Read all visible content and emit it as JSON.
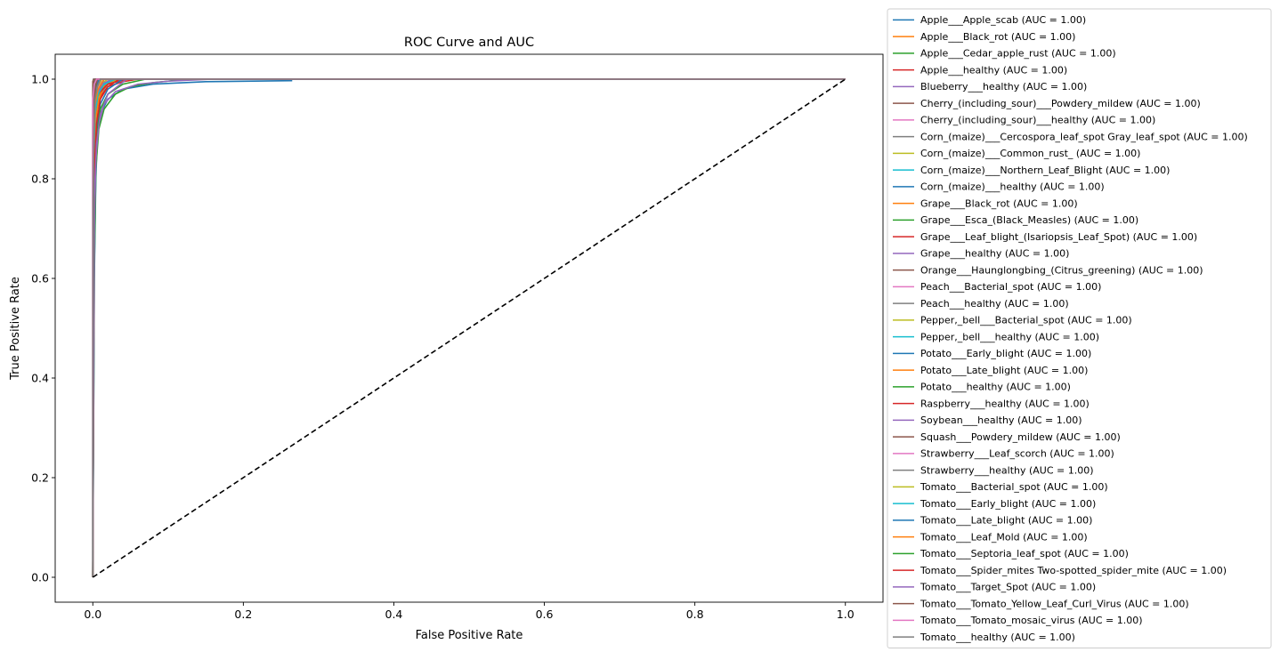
{
  "chart_data": {
    "type": "line",
    "title": "ROC Curve and AUC",
    "xlabel": "False Positive Rate",
    "ylabel": "True Positive Rate",
    "xlim": [
      -0.05,
      1.05
    ],
    "ylim": [
      -0.05,
      1.05
    ],
    "xticks": [
      "0.0",
      "0.2",
      "0.4",
      "0.6",
      "0.8",
      "1.0"
    ],
    "yticks": [
      "0.0",
      "0.2",
      "0.4",
      "0.6",
      "0.8",
      "1.0"
    ],
    "grid": false,
    "legend_placement": "right, outside plot",
    "diagonal": {
      "x": [
        0,
        1
      ],
      "y": [
        0,
        1
      ],
      "style": "dashed",
      "color": "#000000"
    },
    "series": [
      {
        "name": "Apple___Apple_scab (AUC = 1.00)",
        "color": "#1f77b4",
        "x": [
          0,
          0.002,
          0.004,
          0.006,
          0.01,
          0.02,
          0.04,
          0.08,
          0.15,
          0.264,
          0.264,
          1
        ],
        "y": [
          0,
          0.6,
          0.8,
          0.88,
          0.93,
          0.96,
          0.98,
          0.99,
          0.995,
          0.997,
          1,
          1
        ]
      },
      {
        "name": "Apple___Black_rot (AUC = 1.00)",
        "color": "#ff7f0e",
        "x": [
          0,
          0.001,
          0.002,
          0.005,
          0.01,
          0.02,
          0.03,
          1
        ],
        "y": [
          0,
          0.8,
          0.93,
          0.97,
          0.985,
          0.995,
          1,
          1
        ]
      },
      {
        "name": "Apple___Cedar_apple_rust (AUC = 1.00)",
        "color": "#2ca02c",
        "x": [
          0,
          0.002,
          0.004,
          0.008,
          0.015,
          0.03,
          0.05,
          0.08,
          0.1,
          0.12,
          1
        ],
        "y": [
          0,
          0.62,
          0.82,
          0.9,
          0.94,
          0.97,
          0.985,
          0.993,
          0.996,
          1,
          1
        ]
      },
      {
        "name": "Apple___healthy (AUC = 1.00)",
        "color": "#d62728",
        "x": [
          0,
          0.001,
          0.003,
          0.006,
          0.01,
          0.02,
          0.04,
          0.06,
          1
        ],
        "y": [
          0,
          0.75,
          0.88,
          0.94,
          0.965,
          0.985,
          0.995,
          1,
          1
        ]
      },
      {
        "name": "Blueberry___healthy (AUC = 1.00)",
        "color": "#9467bd",
        "x": [
          0,
          0.002,
          0.004,
          0.008,
          0.015,
          0.03,
          0.06,
          0.1,
          0.16,
          1
        ],
        "y": [
          0,
          0.7,
          0.84,
          0.91,
          0.95,
          0.975,
          0.99,
          0.996,
          1,
          1
        ]
      },
      {
        "name": "Cherry_(including_sour)___Powdery_mildew (AUC = 1.00)",
        "color": "#8c564b",
        "x": [
          0,
          0,
          0.002,
          0.005,
          1
        ],
        "y": [
          0,
          0.98,
          0.995,
          1,
          1
        ]
      },
      {
        "name": "Cherry_(including_sour)___healthy (AUC = 1.00)",
        "color": "#e377c2",
        "x": [
          0,
          0,
          0.003,
          0.01,
          1
        ],
        "y": [
          0,
          0.95,
          0.99,
          1,
          1
        ]
      },
      {
        "name": "Corn_(maize)___Cercospora_leaf_spot Gray_leaf_spot (AUC = 1.00)",
        "color": "#7f7f7f",
        "x": [
          0,
          0.002,
          0.005,
          0.01,
          0.02,
          0.04,
          1
        ],
        "y": [
          0,
          0.85,
          0.94,
          0.97,
          0.99,
          1,
          1
        ]
      },
      {
        "name": "Corn_(maize)___Common_rust_ (AUC = 1.00)",
        "color": "#bcbd22",
        "x": [
          0,
          0.001,
          0.004,
          0.01,
          0.02,
          1
        ],
        "y": [
          0,
          0.9,
          0.96,
          0.99,
          1,
          1
        ]
      },
      {
        "name": "Corn_(maize)___Northern_Leaf_Blight (AUC = 1.00)",
        "color": "#17becf",
        "x": [
          0,
          0.002,
          0.005,
          0.01,
          0.02,
          0.03,
          1
        ],
        "y": [
          0,
          0.88,
          0.95,
          0.98,
          0.995,
          1,
          1
        ]
      },
      {
        "name": "Corn_(maize)___healthy (AUC = 1.00)",
        "color": "#1f77b4",
        "x": [
          0,
          0,
          0.001,
          1
        ],
        "y": [
          0,
          0.99,
          1,
          1
        ]
      },
      {
        "name": "Grape___Black_rot (AUC = 1.00)",
        "color": "#ff7f0e",
        "x": [
          0,
          0.001,
          0.003,
          0.008,
          0.015,
          0.025,
          1
        ],
        "y": [
          0,
          0.86,
          0.94,
          0.975,
          0.99,
          1,
          1
        ]
      },
      {
        "name": "Grape___Esca_(Black_Measles) (AUC = 1.00)",
        "color": "#2ca02c",
        "x": [
          0,
          0.001,
          0.003,
          0.006,
          0.012,
          1
        ],
        "y": [
          0,
          0.9,
          0.97,
          0.99,
          1,
          1
        ]
      },
      {
        "name": "Grape___Leaf_blight_(Isariopsis_Leaf_Spot) (AUC = 1.00)",
        "color": "#d62728",
        "x": [
          0,
          0.001,
          0.003,
          0.007,
          0.015,
          0.03,
          1
        ],
        "y": [
          0,
          0.82,
          0.92,
          0.965,
          0.985,
          1,
          1
        ]
      },
      {
        "name": "Grape___healthy (AUC = 1.00)",
        "color": "#9467bd",
        "x": [
          0,
          0,
          0.002,
          0.005,
          1
        ],
        "y": [
          0,
          0.96,
          0.99,
          1,
          1
        ]
      },
      {
        "name": "Orange___Haunglongbing_(Citrus_greening) (AUC = 1.00)",
        "color": "#8c564b",
        "x": [
          0,
          0,
          0.001,
          1
        ],
        "y": [
          0,
          0.995,
          1,
          1
        ]
      },
      {
        "name": "Peach___Bacterial_spot (AUC = 1.00)",
        "color": "#e377c2",
        "x": [
          0,
          0.001,
          0.003,
          0.007,
          0.015,
          1
        ],
        "y": [
          0,
          0.88,
          0.95,
          0.98,
          1,
          1
        ]
      },
      {
        "name": "Peach___healthy (AUC = 1.00)",
        "color": "#7f7f7f",
        "x": [
          0,
          0,
          0.002,
          0.006,
          1
        ],
        "y": [
          0,
          0.94,
          0.985,
          1,
          1
        ]
      },
      {
        "name": "Pepper,_bell___Bacterial_spot (AUC = 1.00)",
        "color": "#bcbd22",
        "x": [
          0,
          0.001,
          0.004,
          0.008,
          0.02,
          0.035,
          1
        ],
        "y": [
          0,
          0.85,
          0.93,
          0.97,
          0.99,
          1,
          1
        ]
      },
      {
        "name": "Pepper,_bell___healthy (AUC = 1.00)",
        "color": "#17becf",
        "x": [
          0,
          0.001,
          0.003,
          0.008,
          0.015,
          1
        ],
        "y": [
          0,
          0.84,
          0.94,
          0.98,
          1,
          1
        ]
      },
      {
        "name": "Potato___Early_blight (AUC = 1.00)",
        "color": "#1f77b4",
        "x": [
          0,
          0.001,
          0.003,
          0.008,
          1
        ],
        "y": [
          0,
          0.92,
          0.97,
          1,
          1
        ]
      },
      {
        "name": "Potato___Late_blight (AUC = 1.00)",
        "color": "#ff7f0e",
        "x": [
          0,
          0.002,
          0.004,
          0.008,
          0.015,
          0.03,
          1
        ],
        "y": [
          0,
          0.83,
          0.92,
          0.96,
          0.985,
          1,
          1
        ]
      },
      {
        "name": "Potato___healthy (AUC = 1.00)",
        "color": "#2ca02c",
        "x": [
          0,
          0,
          0.002,
          0.006,
          1
        ],
        "y": [
          0,
          0.93,
          0.98,
          1,
          1
        ]
      },
      {
        "name": "Raspberry___healthy (AUC = 1.00)",
        "color": "#d62728",
        "x": [
          0,
          0.001,
          0.003,
          0.007,
          0.02,
          0.045,
          1
        ],
        "y": [
          0,
          0.86,
          0.93,
          0.97,
          0.99,
          1,
          1
        ]
      },
      {
        "name": "Soybean___healthy (AUC = 1.00)",
        "color": "#9467bd",
        "x": [
          0,
          0.001,
          0.003,
          0.006,
          0.012,
          0.025,
          1
        ],
        "y": [
          0,
          0.87,
          0.94,
          0.97,
          0.99,
          1,
          1
        ]
      },
      {
        "name": "Squash___Powdery_mildew (AUC = 1.00)",
        "color": "#8c564b",
        "x": [
          0,
          0,
          0.002,
          0.004,
          1
        ],
        "y": [
          0,
          0.97,
          0.995,
          1,
          1
        ]
      },
      {
        "name": "Strawberry___Leaf_scorch (AUC = 1.00)",
        "color": "#e377c2",
        "x": [
          0,
          0.001,
          0.003,
          0.007,
          0.015,
          1
        ],
        "y": [
          0,
          0.9,
          0.96,
          0.985,
          1,
          1
        ]
      },
      {
        "name": "Strawberry___healthy (AUC = 1.00)",
        "color": "#7f7f7f",
        "x": [
          0,
          0,
          0.002,
          0.005,
          1
        ],
        "y": [
          0,
          0.95,
          0.99,
          1,
          1
        ]
      },
      {
        "name": "Tomato___Bacterial_spot (AUC = 1.00)",
        "color": "#bcbd22",
        "x": [
          0,
          0.001,
          0.003,
          0.006,
          0.012,
          1
        ],
        "y": [
          0,
          0.91,
          0.96,
          0.985,
          1,
          1
        ]
      },
      {
        "name": "Tomato___Early_blight (AUC = 1.00)",
        "color": "#17becf",
        "x": [
          0,
          0.001,
          0.003,
          0.007,
          0.015,
          0.03,
          1
        ],
        "y": [
          0,
          0.84,
          0.93,
          0.97,
          0.99,
          1,
          1
        ]
      },
      {
        "name": "Tomato___Late_blight (AUC = 1.00)",
        "color": "#1f77b4",
        "x": [
          0,
          0.002,
          0.005,
          0.01,
          0.02,
          0.04,
          1
        ],
        "y": [
          0,
          0.8,
          0.9,
          0.95,
          0.98,
          1,
          1
        ]
      },
      {
        "name": "Tomato___Leaf_Mold (AUC = 1.00)",
        "color": "#ff7f0e",
        "x": [
          0,
          0.001,
          0.003,
          0.007,
          0.015,
          1
        ],
        "y": [
          0,
          0.87,
          0.95,
          0.98,
          1,
          1
        ]
      },
      {
        "name": "Tomato___Septoria_leaf_spot (AUC = 1.00)",
        "color": "#2ca02c",
        "x": [
          0,
          0.002,
          0.005,
          0.01,
          0.02,
          0.04,
          0.07,
          1
        ],
        "y": [
          0,
          0.78,
          0.88,
          0.94,
          0.97,
          0.99,
          1,
          1
        ]
      },
      {
        "name": "Tomato___Spider_mites Two-spotted_spider_mite (AUC = 1.00)",
        "color": "#d62728",
        "x": [
          0,
          0.002,
          0.005,
          0.01,
          0.02,
          0.035,
          1
        ],
        "y": [
          0,
          0.82,
          0.91,
          0.96,
          0.985,
          1,
          1
        ]
      },
      {
        "name": "Tomato___Target_Spot (AUC = 1.00)",
        "color": "#9467bd",
        "x": [
          0,
          0.002,
          0.005,
          0.01,
          0.02,
          0.045,
          1
        ],
        "y": [
          0,
          0.76,
          0.87,
          0.93,
          0.97,
          1,
          1
        ]
      },
      {
        "name": "Tomato___Tomato_Yellow_Leaf_Curl_Virus (AUC = 1.00)",
        "color": "#8c564b",
        "x": [
          0,
          0.001,
          0.003,
          0.006,
          1
        ],
        "y": [
          0,
          0.93,
          0.98,
          1,
          1
        ]
      },
      {
        "name": "Tomato___Tomato_mosaic_virus (AUC = 1.00)",
        "color": "#e377c2",
        "x": [
          0,
          0,
          0.002,
          0.005,
          1
        ],
        "y": [
          0,
          0.96,
          0.99,
          1,
          1
        ]
      },
      {
        "name": "Tomato___healthy (AUC = 1.00)",
        "color": "#7f7f7f",
        "x": [
          0,
          0.0005,
          0.0015,
          0.003,
          0.006,
          0.01,
          1
        ],
        "y": [
          0,
          0.75,
          0.9,
          0.96,
          0.985,
          1,
          1
        ]
      }
    ]
  }
}
